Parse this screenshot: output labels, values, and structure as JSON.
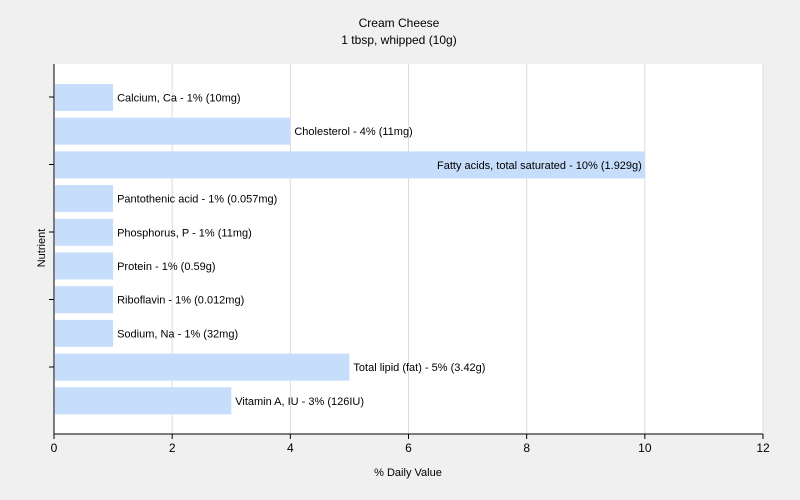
{
  "chart_data": {
    "type": "bar",
    "orientation": "horizontal",
    "title": "Cream Cheese",
    "subtitle": "1 tbsp, whipped (10g)",
    "xlabel": "% Daily Value",
    "ylabel": "Nutrient",
    "xlim": [
      0,
      12
    ],
    "xticks": [
      "0",
      "2",
      "4",
      "6",
      "8",
      "10",
      "12"
    ],
    "grid": true,
    "bar_color": "#c6ddfc",
    "categories": [
      "Calcium, Ca",
      "Cholesterol",
      "Fatty acids, total saturated",
      "Pantothenic acid",
      "Phosphorus, P",
      "Protein",
      "Riboflavin",
      "Sodium, Na",
      "Total lipid (fat)",
      "Vitamin A, IU"
    ],
    "values": [
      1,
      4,
      10,
      1,
      1,
      1,
      1,
      1,
      5,
      3
    ],
    "labels": [
      "Calcium, Ca - 1% (10mg)",
      "Cholesterol - 4% (11mg)",
      "Fatty acids, total saturated - 10% (1.929g)",
      "Pantothenic acid - 1% (0.057mg)",
      "Phosphorus, P - 1% (11mg)",
      "Protein - 1% (0.59g)",
      "Riboflavin - 1% (0.012mg)",
      "Sodium, Na - 1% (32mg)",
      "Total lipid (fat) - 5% (3.42g)",
      "Vitamin A, IU - 3% (126IU)"
    ]
  }
}
